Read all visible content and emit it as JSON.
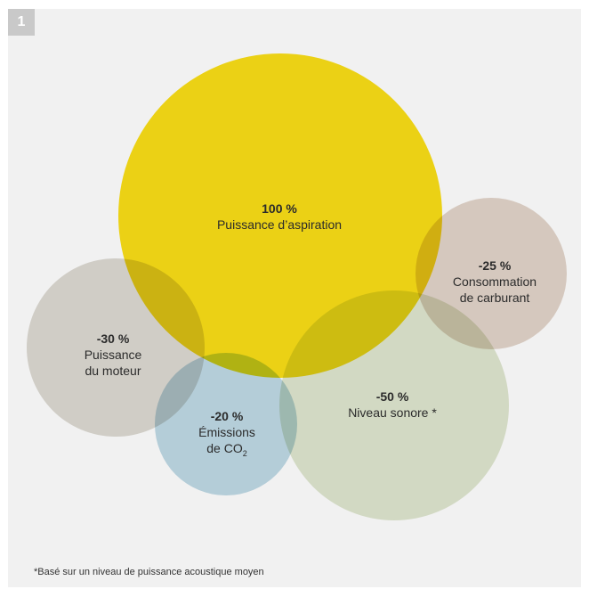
{
  "badge": "1",
  "circles": [
    {
      "id": "aspiration",
      "value": "100 %",
      "line1": "Puissance d’aspiration",
      "line2": "",
      "color": "#f9de16"
    },
    {
      "id": "carburant",
      "value": "-25 %",
      "line1": "Consommation",
      "line2": "de carburant",
      "color": "#e2d4c9"
    },
    {
      "id": "moteur",
      "value": "-30 %",
      "line1": "Puissance",
      "line2": "du moteur",
      "color": "#dcd9d2"
    },
    {
      "id": "sonore",
      "value": "-50 %",
      "line1": "Niveau sonore *",
      "line2": "",
      "color": "#dfe6cf"
    },
    {
      "id": "co2",
      "value": "-20 %",
      "line1": "Émissions",
      "line2": "de CO",
      "sub": "2",
      "color": "#bfd9e5"
    }
  ],
  "footnote": "*Basé sur un niveau de puissance acoustique moyen"
}
